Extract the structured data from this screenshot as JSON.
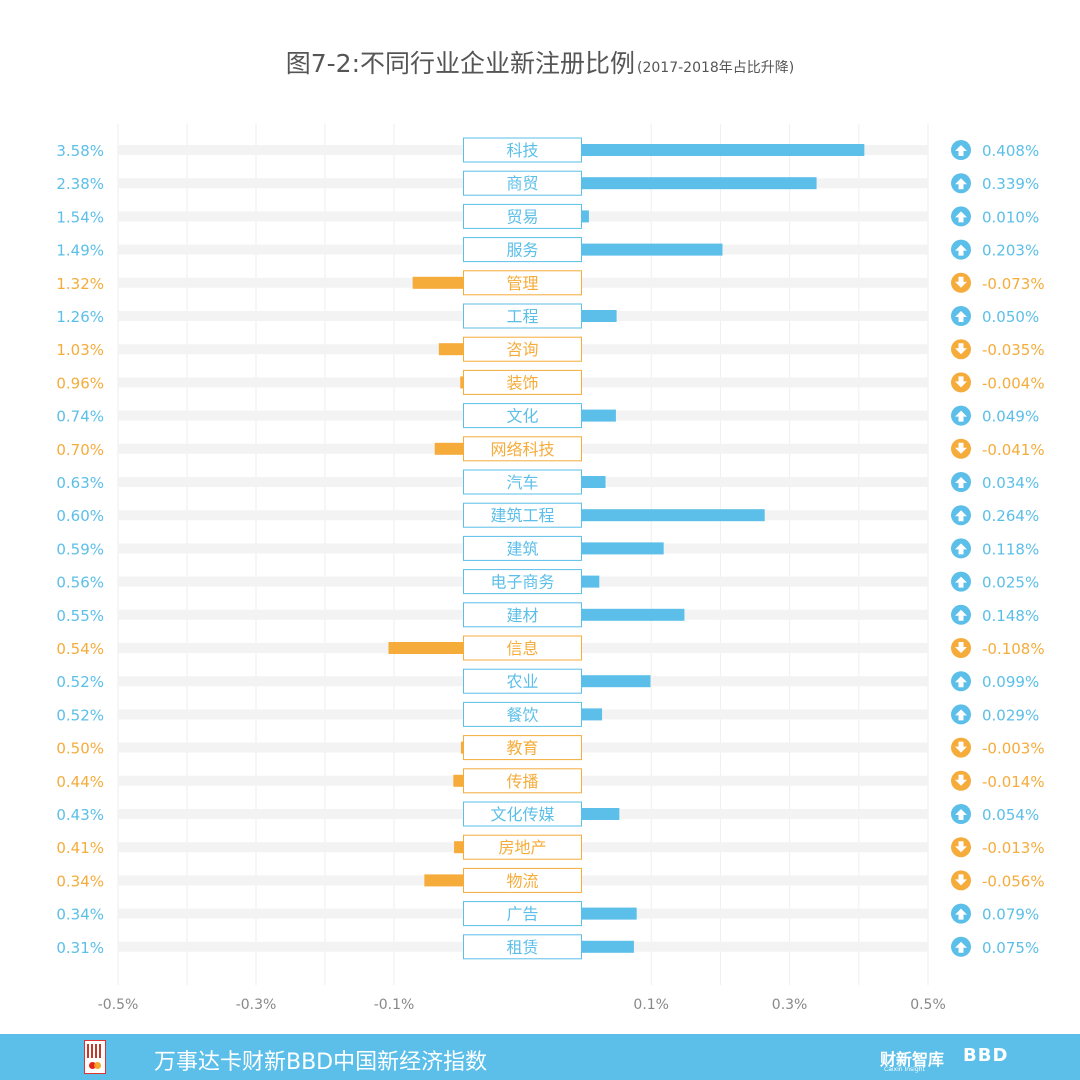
{
  "title": {
    "main": "图7-2:不同行业企业新注册比例",
    "sub": "(2017-2018年占比升降)"
  },
  "colors": {
    "up": "#5bbfe9",
    "down": "#f5ac3b",
    "track": "#f3f3f3",
    "grid": "#eeeeee",
    "axis_text": "#888888"
  },
  "chart_data": {
    "type": "bar",
    "orientation": "horizontal",
    "title": "图7-2:不同行业企业新注册比例(2017-2018年占比升降)",
    "xlabel": "",
    "ylabel": "",
    "xlim": [
      -0.5,
      0.5
    ],
    "x_ticks": [
      -0.5,
      -0.3,
      -0.1,
      0.1,
      0.3,
      0.5
    ],
    "x_tick_labels": [
      "-0.5%",
      "-0.3%",
      "-0.1%",
      "0.1%",
      "0.3%",
      "0.5%"
    ],
    "categories": [
      "科技",
      "商贸",
      "贸易",
      "服务",
      "管理",
      "工程",
      "咨询",
      "装饰",
      "文化",
      "网络科技",
      "汽车",
      "建筑工程",
      "建筑",
      "电子商务",
      "建材",
      "信息",
      "农业",
      "餐饮",
      "教育",
      "传播",
      "文化传媒",
      "房地产",
      "物流",
      "广告",
      "租赁"
    ],
    "share_labels": [
      "3.58%",
      "2.38%",
      "1.54%",
      "1.49%",
      "1.32%",
      "1.26%",
      "1.03%",
      "0.96%",
      "0.74%",
      "0.70%",
      "0.63%",
      "0.60%",
      "0.59%",
      "0.56%",
      "0.55%",
      "0.54%",
      "0.52%",
      "0.52%",
      "0.50%",
      "0.44%",
      "0.43%",
      "0.41%",
      "0.34%",
      "0.34%",
      "0.31%"
    ],
    "values": [
      0.408,
      0.339,
      0.01,
      0.203,
      -0.073,
      0.05,
      -0.035,
      -0.004,
      0.049,
      -0.041,
      0.034,
      0.264,
      0.118,
      0.025,
      0.148,
      -0.108,
      0.099,
      0.029,
      -0.003,
      -0.014,
      0.054,
      -0.013,
      -0.056,
      0.079,
      0.075
    ],
    "change_labels": [
      "0.408%",
      "0.339%",
      "0.010%",
      "0.203%",
      "-0.073%",
      "0.050%",
      "-0.035%",
      "-0.004%",
      "0.049%",
      "-0.041%",
      "0.034%",
      "0.264%",
      "0.118%",
      "0.025%",
      "0.148%",
      "-0.108%",
      "0.099%",
      "0.029%",
      "-0.003%",
      "-0.014%",
      "0.054%",
      "-0.013%",
      "-0.056%",
      "0.079%",
      "0.075%"
    ]
  },
  "footer": {
    "brand": "万事达卡财新BBD中国新经济指数",
    "logo1": "财新智库",
    "logo1_sub": "Caixin Insight",
    "logo2": "BBD"
  }
}
